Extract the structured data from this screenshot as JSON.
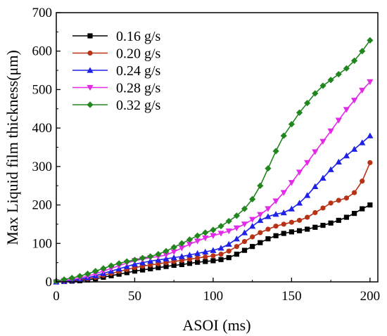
{
  "chart_data": {
    "type": "line",
    "title": "",
    "xlabel": "ASOI (ms)",
    "ylabel": "Max Liquid film thickness(μm)",
    "xlim": [
      0,
      205
    ],
    "ylim": [
      0,
      700
    ],
    "xticks": [
      0,
      50,
      100,
      150,
      200
    ],
    "xtick_labels": [
      "0",
      "50",
      "100",
      "150",
      "200"
    ],
    "yticks": [
      0,
      100,
      200,
      300,
      400,
      500,
      600,
      700
    ],
    "ytick_labels": [
      "0",
      "100",
      "200",
      "300",
      "400",
      "500",
      "600",
      "700"
    ],
    "grid": false,
    "legend_position": "top-left",
    "series": [
      {
        "name": "0.16 g/s",
        "color": "#000000",
        "marker": "square",
        "x": [
          0,
          5,
          10,
          15,
          20,
          25,
          30,
          35,
          40,
          45,
          50,
          55,
          60,
          65,
          70,
          75,
          80,
          85,
          90,
          95,
          100,
          105,
          110,
          115,
          120,
          125,
          130,
          135,
          140,
          145,
          150,
          155,
          160,
          165,
          170,
          175,
          180,
          185,
          190,
          195,
          200
        ],
        "y": [
          0,
          1,
          2,
          3,
          5,
          8,
          12,
          16,
          20,
          24,
          28,
          31,
          34,
          37,
          40,
          43,
          45,
          48,
          51,
          53,
          55,
          58,
          63,
          72,
          82,
          92,
          102,
          112,
          120,
          126,
          130,
          133,
          137,
          142,
          147,
          153,
          160,
          168,
          178,
          190,
          200
        ]
      },
      {
        "name": "0.20 g/s",
        "color": "#b83216",
        "marker": "circle",
        "x": [
          0,
          5,
          10,
          15,
          20,
          25,
          30,
          35,
          40,
          45,
          50,
          55,
          60,
          65,
          70,
          75,
          80,
          85,
          90,
          95,
          100,
          105,
          110,
          115,
          120,
          125,
          130,
          135,
          140,
          145,
          150,
          155,
          160,
          165,
          170,
          175,
          180,
          185,
          190,
          195,
          200
        ],
        "y": [
          0,
          1,
          3,
          5,
          8,
          12,
          17,
          22,
          27,
          32,
          37,
          41,
          44,
          47,
          50,
          53,
          56,
          59,
          62,
          65,
          68,
          72,
          80,
          92,
          105,
          117,
          128,
          137,
          145,
          150,
          155,
          160,
          168,
          180,
          192,
          205,
          212,
          218,
          232,
          262,
          310
        ]
      },
      {
        "name": "0.24 g/s",
        "color": "#1f22e6",
        "marker": "triangle-up",
        "x": [
          0,
          5,
          10,
          15,
          20,
          25,
          30,
          35,
          40,
          45,
          50,
          55,
          60,
          65,
          70,
          75,
          80,
          85,
          90,
          95,
          100,
          105,
          110,
          115,
          120,
          125,
          130,
          135,
          140,
          145,
          150,
          155,
          160,
          165,
          170,
          175,
          180,
          185,
          190,
          195,
          200
        ],
        "y": [
          0,
          2,
          4,
          7,
          11,
          16,
          22,
          28,
          34,
          40,
          46,
          50,
          54,
          57,
          60,
          63,
          66,
          70,
          74,
          78,
          82,
          88,
          98,
          112,
          128,
          145,
          160,
          170,
          176,
          180,
          190,
          205,
          225,
          248,
          270,
          292,
          312,
          328,
          345,
          362,
          380
        ]
      },
      {
        "name": "0.28 g/s",
        "color": "#e32ae8",
        "marker": "triangle-down",
        "x": [
          0,
          5,
          10,
          15,
          20,
          25,
          30,
          35,
          40,
          45,
          50,
          55,
          60,
          65,
          70,
          75,
          80,
          85,
          90,
          95,
          100,
          105,
          110,
          115,
          120,
          125,
          130,
          135,
          140,
          145,
          150,
          155,
          160,
          165,
          170,
          175,
          180,
          185,
          190,
          195,
          200
        ],
        "y": [
          0,
          3,
          6,
          10,
          15,
          21,
          28,
          35,
          42,
          49,
          55,
          59,
          63,
          66,
          70,
          78,
          88,
          98,
          106,
          114,
          120,
          126,
          132,
          140,
          150,
          162,
          175,
          190,
          210,
          232,
          258,
          285,
          310,
          338,
          365,
          392,
          420,
          448,
          472,
          498,
          520
        ]
      },
      {
        "name": "0.32 g/s",
        "color": "#22861f",
        "marker": "diamond",
        "x": [
          0,
          5,
          10,
          15,
          20,
          25,
          30,
          35,
          40,
          45,
          50,
          55,
          60,
          65,
          70,
          75,
          80,
          85,
          90,
          95,
          100,
          105,
          110,
          115,
          120,
          125,
          130,
          135,
          140,
          145,
          150,
          155,
          160,
          165,
          170,
          175,
          180,
          185,
          190,
          195,
          200
        ],
        "y": [
          2,
          6,
          10,
          15,
          21,
          28,
          35,
          42,
          48,
          53,
          57,
          62,
          66,
          72,
          80,
          90,
          100,
          110,
          120,
          128,
          135,
          145,
          158,
          172,
          190,
          215,
          250,
          295,
          340,
          380,
          410,
          440,
          465,
          490,
          510,
          525,
          540,
          555,
          575,
          600,
          628
        ]
      }
    ]
  }
}
